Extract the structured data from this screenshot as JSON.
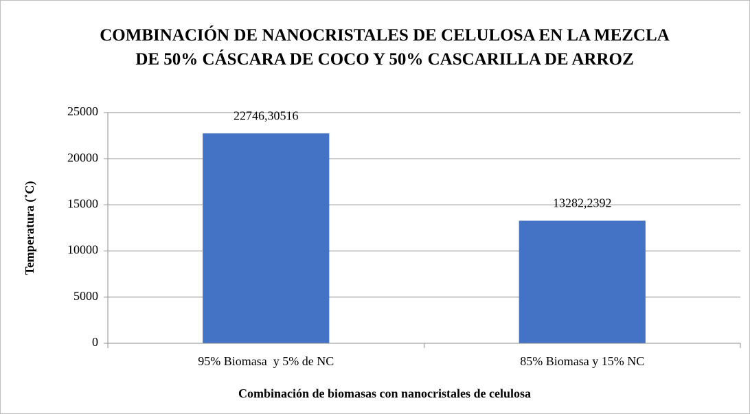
{
  "chart_data": {
    "type": "bar",
    "title": "COMBINACIÓN DE NANOCRISTALES DE CELULOSA EN LA MEZCLA DE 50% CÁSCARA DE COCO Y 50% CASCARILLA DE ARROZ",
    "x_label": "Combinación de biomasas con nanocristales de celulosa",
    "y_label": "Temperatura (˚C)",
    "categories": [
      "95% Biomasa  y 5% de NC",
      "85% Biomasa y 15% NC"
    ],
    "values": [
      22746.30516,
      13282.2392
    ],
    "value_labels": [
      "22746,30516",
      "13282,2392"
    ],
    "color": "#4472c4",
    "ylim": [
      0,
      25000
    ],
    "yticks": [
      0,
      5000,
      10000,
      15000,
      20000,
      25000
    ],
    "grid": true
  }
}
